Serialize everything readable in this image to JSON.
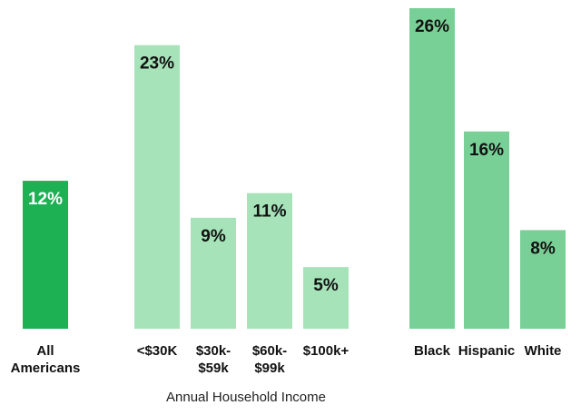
{
  "chart_data": {
    "type": "bar",
    "categories": [
      [
        "All",
        "Americans"
      ],
      [
        "<$30K"
      ],
      [
        "$30k-",
        "$59k"
      ],
      [
        "$60k-",
        "$99k"
      ],
      [
        "$100k+"
      ],
      [
        "Black"
      ],
      [
        "Hispanic"
      ],
      [
        "White"
      ]
    ],
    "values": [
      12,
      23,
      9,
      11,
      5,
      26,
      16,
      8
    ],
    "value_labels": [
      "12%",
      "23%",
      "9%",
      "11%",
      "5%",
      "26%",
      "16%",
      "8%"
    ],
    "unit": "%",
    "groups": [
      {
        "label": "",
        "members": [
          0
        ],
        "color": "#1db154",
        "label_color": "#ffffff"
      },
      {
        "label": "Annual Household Income",
        "members": [
          1,
          2,
          3,
          4
        ],
        "color": "#a6e3b9",
        "label_color": "#111111"
      },
      {
        "label": "",
        "members": [
          5,
          6,
          7
        ],
        "color": "#79d096",
        "label_color": "#111111"
      }
    ],
    "title": "",
    "xlabel": "Annual Household Income",
    "ylabel": "",
    "ylim": [
      0,
      26
    ],
    "grid": false,
    "legend": "none"
  }
}
